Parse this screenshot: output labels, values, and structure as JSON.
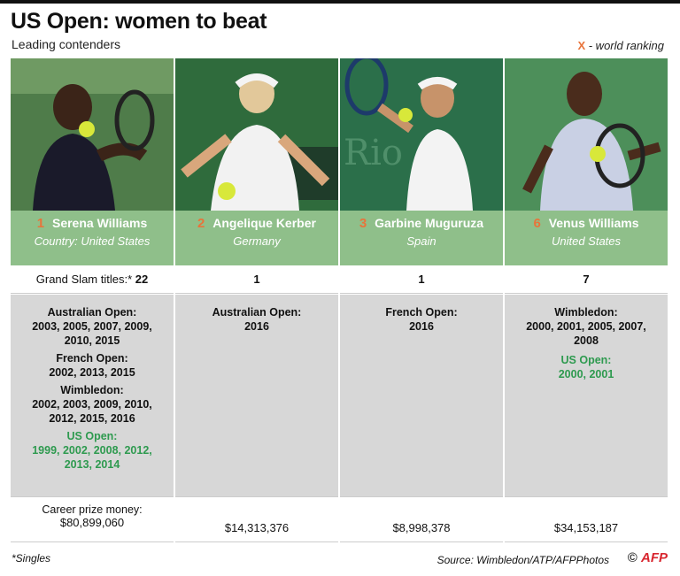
{
  "title": "US Open: women to beat",
  "subtitle": "Leading contenders",
  "legend": {
    "symbol": "X",
    "text": " - world ranking"
  },
  "titles_label": "Grand Slam titles:*",
  "prize_label": "Career prize money:",
  "players": [
    {
      "rank": "1",
      "name": "Serena Williams",
      "country": "Country: United States",
      "slam_titles": "22",
      "groups": [
        {
          "event": "Australian Open:",
          "years": "2003, 2005, 2007, 2009, 2010, 2015",
          "highlight": false
        },
        {
          "event": "French Open:",
          "years": "2002, 2013, 2015",
          "highlight": false
        },
        {
          "event": "Wimbledon:",
          "years": "2002, 2003, 2009, 2010, 2012, 2015, 2016",
          "highlight": false
        },
        {
          "event": "US Open:",
          "years": "1999, 2002, 2008, 2012, 2013, 2014",
          "highlight": true
        }
      ],
      "prize": "$80,899,060"
    },
    {
      "rank": "2",
      "name": "Angelique Kerber",
      "country": "Germany",
      "slam_titles": "1",
      "groups": [
        {
          "event": "Australian Open:",
          "years": "2016",
          "highlight": false
        }
      ],
      "prize": "$14,313,376"
    },
    {
      "rank": "3",
      "name": "Garbine Muguruza",
      "country": "Spain",
      "slam_titles": "1",
      "groups": [
        {
          "event": "French Open:",
          "years": "2016",
          "highlight": false
        }
      ],
      "prize": "$8,998,378"
    },
    {
      "rank": "6",
      "name": "Venus Williams",
      "country": "United States",
      "slam_titles": "7",
      "groups": [
        {
          "event": "Wimbledon:",
          "years": "2000, 2001, 2005, 2007, 2008",
          "highlight": false
        },
        {
          "event": "US Open:",
          "years": "2000, 2001",
          "highlight": true
        }
      ],
      "prize": "$34,153,187"
    }
  ],
  "footnote": "*Singles",
  "source": "Source: Wimbledon/ATP/AFPPhotos",
  "credit": {
    "copyright": "©",
    "logo": "AFP"
  },
  "colors": {
    "green_box": "#8fbf8a",
    "rank": "#e8743b",
    "us_open": "#2e9a4f",
    "body_bg": "#d7d7d7"
  }
}
